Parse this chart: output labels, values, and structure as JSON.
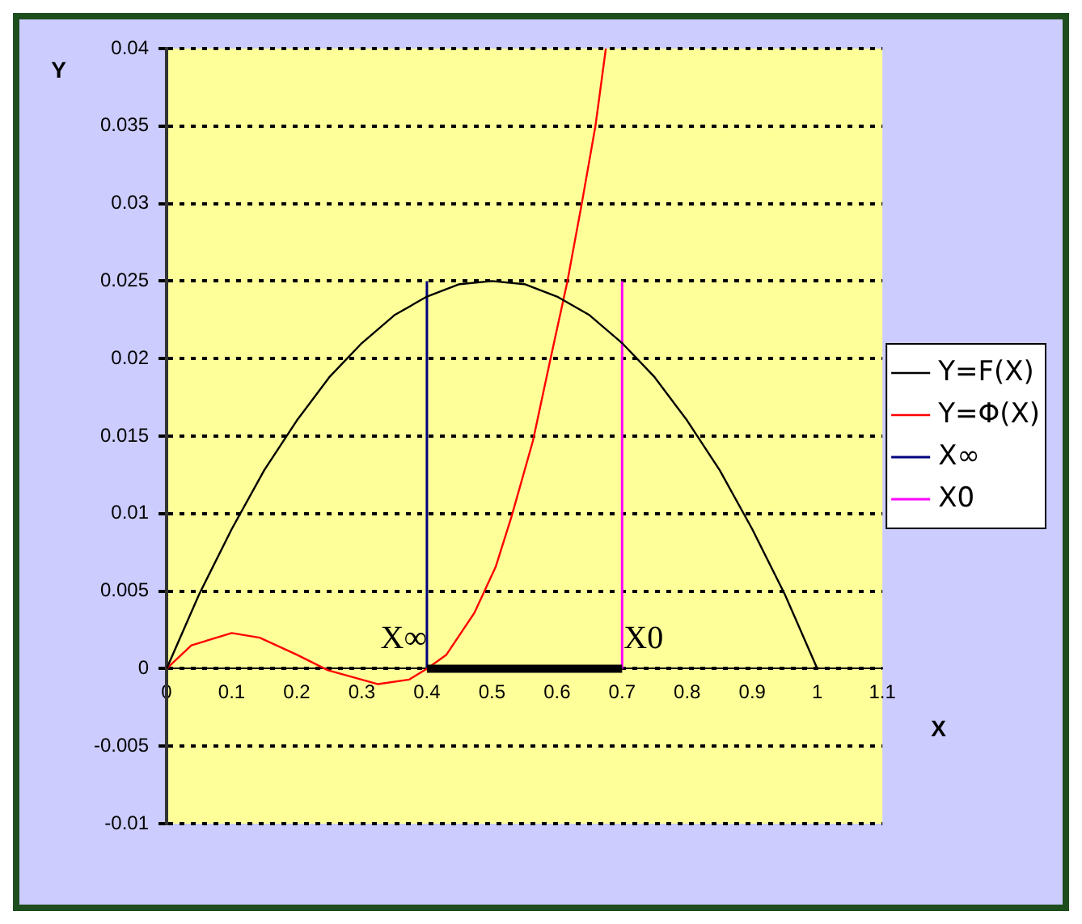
{
  "chart_data": {
    "type": "line",
    "xlabel": "X",
    "ylabel": "Y",
    "xlim": [
      0,
      1.1
    ],
    "xticks": [
      0,
      0.1,
      0.2,
      0.3,
      0.4,
      0.5,
      0.6,
      0.7,
      0.8,
      0.9,
      1,
      1.1
    ],
    "ylim": [
      -0.01,
      0.04
    ],
    "yticks": [
      -0.01,
      -0.005,
      0,
      0.005,
      0.01,
      0.015,
      0.02,
      0.025,
      0.03,
      0.035,
      0.04
    ],
    "grid": "y",
    "legend": "right",
    "marker": "none",
    "line_style": "solid",
    "series": [
      {
        "name": "Y=F(X)",
        "color": "#000000",
        "x": [
          0,
          0.05,
          0.1,
          0.15,
          0.2,
          0.25,
          0.3,
          0.35,
          0.4,
          0.45,
          0.5,
          0.55,
          0.6,
          0.65,
          0.7,
          0.75,
          0.8,
          0.85,
          0.9,
          0.95,
          1
        ],
        "values": [
          0,
          0.0048,
          0.009,
          0.0128,
          0.016,
          0.0188,
          0.021,
          0.0228,
          0.024,
          0.0248,
          0.025,
          0.0248,
          0.024,
          0.0228,
          0.021,
          0.0188,
          0.016,
          0.0128,
          0.009,
          0.0048,
          0
        ]
      },
      {
        "name": "Y=Φ(X)",
        "color": "#ff0000",
        "x": [
          0,
          0.038,
          0.1,
          0.143,
          0.2,
          0.248,
          0.325,
          0.373,
          0.4,
          0.43,
          0.473,
          0.506,
          0.53,
          0.563,
          0.59,
          0.616,
          0.638,
          0.659,
          0.675
        ],
        "values": [
          0,
          0.0015,
          0.0023,
          0.002,
          0.0009,
          -0.0001,
          -0.001,
          -0.0007,
          0,
          0.0009,
          0.0036,
          0.0066,
          0.0098,
          0.0147,
          0.02,
          0.025,
          0.03,
          0.035,
          0.04
        ]
      },
      {
        "name": "X∞",
        "color": "#000080",
        "x": [
          0.4,
          0.4
        ],
        "values": [
          0,
          0.025
        ]
      },
      {
        "name": "X0",
        "color": "#ff00ff",
        "x": [
          0.7,
          0.7
        ],
        "values": [
          0,
          0.025
        ]
      },
      {
        "color": "#000000",
        "x": [
          0.4,
          0.7
        ],
        "values": [
          0,
          0
        ]
      }
    ],
    "annotations": [
      {
        "text": "X∞",
        "x": 0.4,
        "y": 0
      },
      {
        "text": "X0",
        "x": 0.7,
        "y": 0
      }
    ]
  }
}
